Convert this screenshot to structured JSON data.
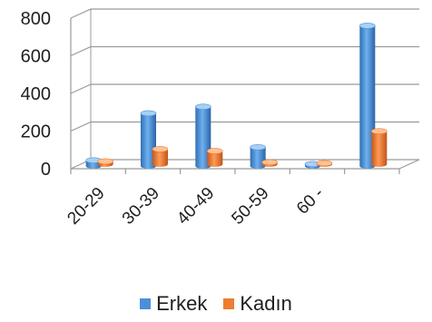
{
  "chart_data": {
    "type": "bar",
    "title": "",
    "xlabel": "",
    "ylabel": "",
    "categories": [
      "20-29",
      "30-39",
      "40-49",
      "50-59",
      "60 -",
      ""
    ],
    "series": [
      {
        "name": "Erkek",
        "color": "#4a90d9",
        "values": [
          30,
          280,
          315,
          100,
          10,
          745
        ]
      },
      {
        "name": "Kadın",
        "color": "#ed7d31",
        "values": [
          15,
          80,
          70,
          10,
          5,
          175
        ]
      }
    ],
    "ylim": [
      0,
      800
    ],
    "yticks": [
      0,
      200,
      400,
      600,
      800
    ],
    "grid": true,
    "legend_position": "bottom"
  }
}
